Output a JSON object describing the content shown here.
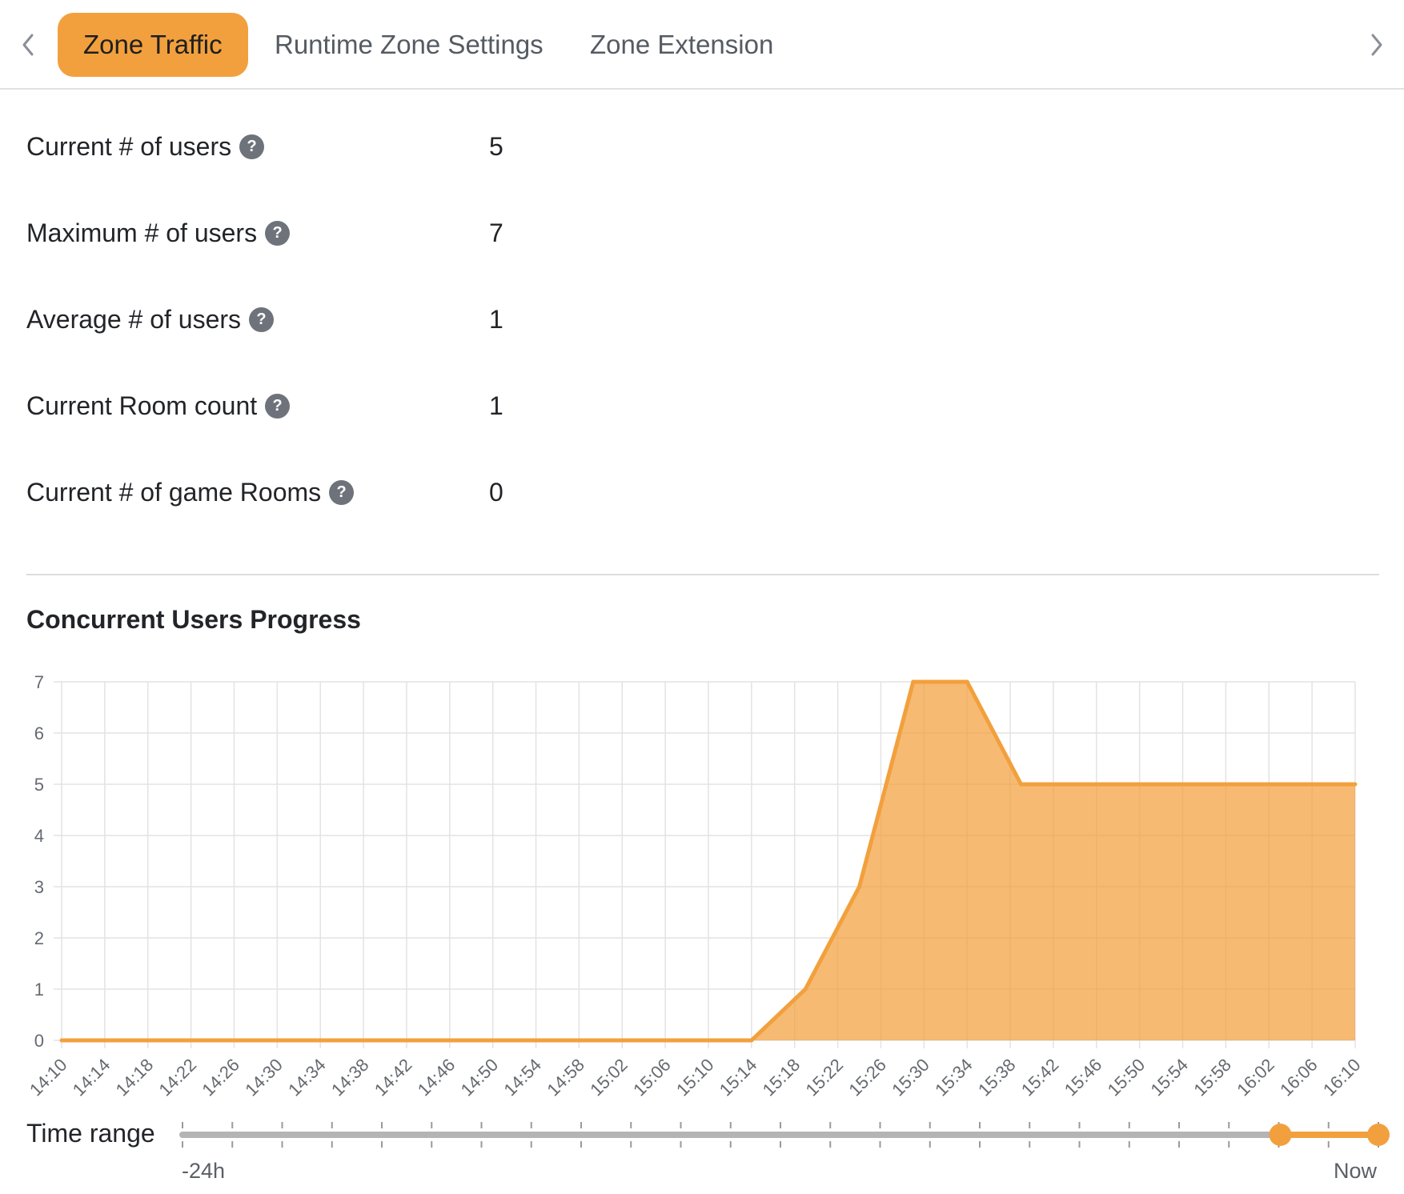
{
  "tabs": {
    "prev_icon": "chevron-left-icon",
    "next_icon": "chevron-right-icon",
    "items": [
      {
        "label": "Zone Traffic",
        "active": true
      },
      {
        "label": "Runtime Zone Settings",
        "active": false
      },
      {
        "label": "Zone Extension",
        "active": false
      }
    ]
  },
  "stats": [
    {
      "label": "Current # of users",
      "value": "5"
    },
    {
      "label": "Maximum # of users",
      "value": "7"
    },
    {
      "label": "Average # of users",
      "value": "1"
    },
    {
      "label": "Current Room count",
      "value": "1"
    },
    {
      "label": "Current # of game Rooms",
      "value": "0"
    }
  ],
  "help_glyph": "?",
  "section_title": "Concurrent Users Progress",
  "chart_data": {
    "type": "area",
    "title": "",
    "xlabel": "",
    "ylabel": "",
    "ylim": [
      0,
      7
    ],
    "yticks": [
      0,
      1,
      2,
      3,
      4,
      5,
      6,
      7
    ],
    "grid": true,
    "legend": "none",
    "color": "#f2a03d",
    "x_tick_labels": [
      "14:10",
      "14:14",
      "14:18",
      "14:22",
      "14:26",
      "14:30",
      "14:34",
      "14:38",
      "14:42",
      "14:46",
      "14:50",
      "14:54",
      "14:58",
      "15:02",
      "15:06",
      "15:10",
      "15:14",
      "15:18",
      "15:22",
      "15:26",
      "15:30",
      "15:34",
      "15:38",
      "15:42",
      "15:46",
      "15:50",
      "15:54",
      "15:58",
      "16:02",
      "16:06",
      "16:10"
    ],
    "x": [
      "14:10",
      "15:14",
      "15:19",
      "15:24",
      "15:29",
      "15:34",
      "15:39",
      "16:10"
    ],
    "values": [
      0,
      0,
      1,
      3,
      7,
      7,
      5,
      5
    ]
  },
  "time_range": {
    "label": "Time range",
    "min_label": "-24h",
    "max_label": "Now",
    "ticks": 24,
    "selected_start_fraction": 0.918,
    "selected_end_fraction": 1.0,
    "track_color": "#b4b4b4",
    "accent_color": "#f2a03d"
  }
}
